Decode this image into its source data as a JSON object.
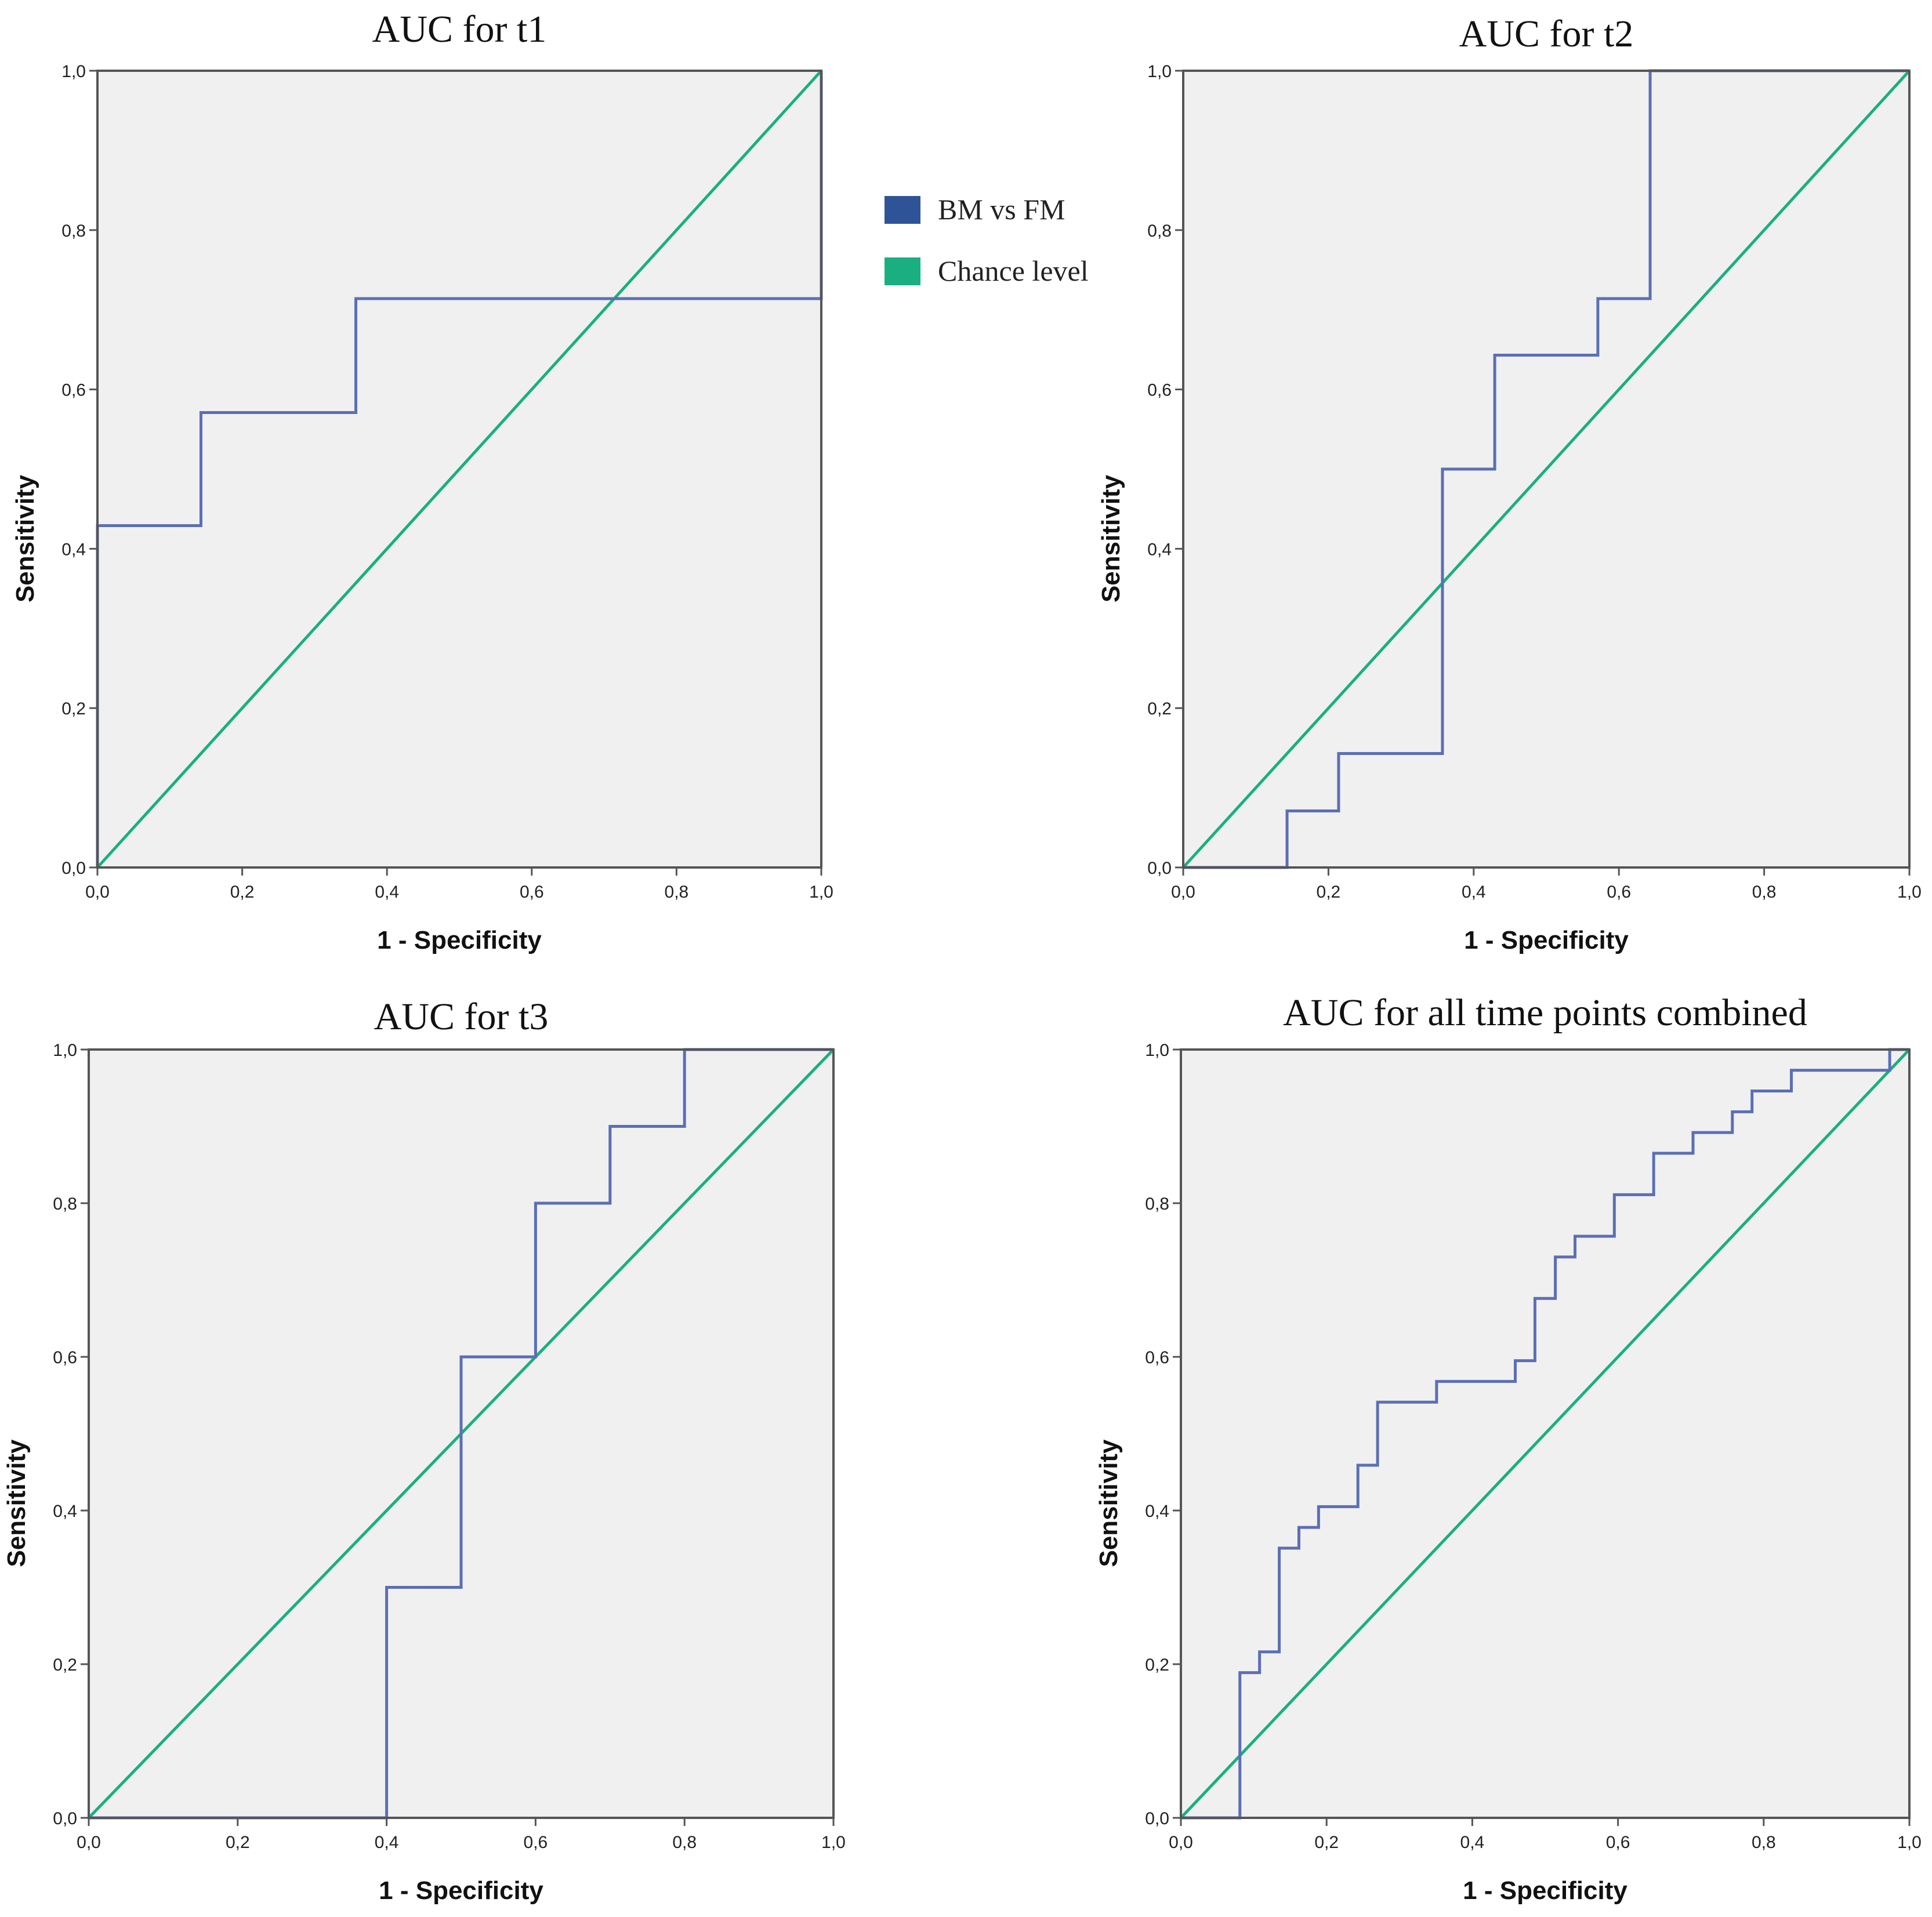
{
  "legend": {
    "items": [
      {
        "label": "BM vs FM",
        "color": "#2e5497"
      },
      {
        "label": "Chance level",
        "color": "#1aaf80"
      }
    ]
  },
  "colors": {
    "plot_background": "#f0f0f0",
    "frame": "#555555",
    "roc_line": "#5b6fb3",
    "chance_line": "#1aaf80"
  },
  "chart_data": [
    {
      "type": "line",
      "title": "AUC for t1",
      "xlabel": "1 - Specificity",
      "ylabel": "Sensitivity",
      "xlim": [
        0,
        1
      ],
      "ylim": [
        0,
        1
      ],
      "xticks": [
        "0,0",
        "0,2",
        "0,4",
        "0,6",
        "0,8",
        "1,0"
      ],
      "yticks": [
        "0,0",
        "0,2",
        "0,4",
        "0,6",
        "0,8",
        "1,0"
      ],
      "grid": false,
      "series": [
        {
          "name": "BM vs FM",
          "points": [
            [
              0,
              0
            ],
            [
              0,
              0.429
            ],
            [
              0.143,
              0.429
            ],
            [
              0.143,
              0.571
            ],
            [
              0.357,
              0.571
            ],
            [
              0.357,
              0.714
            ],
            [
              1,
              0.714
            ],
            [
              1,
              1
            ]
          ]
        },
        {
          "name": "Chance level",
          "points": [
            [
              0,
              0
            ],
            [
              1,
              1
            ]
          ]
        }
      ]
    },
    {
      "type": "line",
      "title": "AUC for t2",
      "xlabel": "1 - Specificity",
      "ylabel": "Sensitivity",
      "xlim": [
        0,
        1
      ],
      "ylim": [
        0,
        1
      ],
      "xticks": [
        "0,0",
        "0,2",
        "0,4",
        "0,6",
        "0,8",
        "1,0"
      ],
      "yticks": [
        "0,0",
        "0,2",
        "0,4",
        "0,6",
        "0,8",
        "1,0"
      ],
      "grid": false,
      "series": [
        {
          "name": "BM vs FM",
          "points": [
            [
              0,
              0
            ],
            [
              0.143,
              0
            ],
            [
              0.143,
              0.071
            ],
            [
              0.214,
              0.071
            ],
            [
              0.214,
              0.143
            ],
            [
              0.357,
              0.143
            ],
            [
              0.357,
              0.5
            ],
            [
              0.429,
              0.5
            ],
            [
              0.429,
              0.643
            ],
            [
              0.571,
              0.643
            ],
            [
              0.571,
              0.714
            ],
            [
              0.643,
              0.714
            ],
            [
              0.643,
              1
            ],
            [
              1,
              1
            ]
          ]
        },
        {
          "name": "Chance level",
          "points": [
            [
              0,
              0
            ],
            [
              1,
              1
            ]
          ]
        }
      ]
    },
    {
      "type": "line",
      "title": "AUC for t3",
      "xlabel": "1 - Specificity",
      "ylabel": "Sensitivity",
      "xlim": [
        0,
        1
      ],
      "ylim": [
        0,
        1
      ],
      "xticks": [
        "0,0",
        "0,2",
        "0,4",
        "0,6",
        "0,8",
        "1,0"
      ],
      "yticks": [
        "0,0",
        "0,2",
        "0,4",
        "0,6",
        "0,8",
        "1,0"
      ],
      "grid": false,
      "series": [
        {
          "name": "BM vs FM",
          "points": [
            [
              0,
              0
            ],
            [
              0.4,
              0
            ],
            [
              0.4,
              0.3
            ],
            [
              0.5,
              0.3
            ],
            [
              0.5,
              0.6
            ],
            [
              0.6,
              0.6
            ],
            [
              0.6,
              0.8
            ],
            [
              0.7,
              0.8
            ],
            [
              0.7,
              0.9
            ],
            [
              0.8,
              0.9
            ],
            [
              0.8,
              1
            ],
            [
              1,
              1
            ]
          ]
        },
        {
          "name": "Chance level",
          "points": [
            [
              0,
              0
            ],
            [
              1,
              1
            ]
          ]
        }
      ]
    },
    {
      "type": "line",
      "title": "AUC for all time points combined",
      "xlabel": "1 - Specificity",
      "ylabel": "Sensitivity",
      "xlim": [
        0,
        1
      ],
      "ylim": [
        0,
        1
      ],
      "xticks": [
        "0,0",
        "0,2",
        "0,4",
        "0,6",
        "0,8",
        "1,0"
      ],
      "yticks": [
        "0,0",
        "0,2",
        "0,4",
        "0,6",
        "0,8",
        "1,0"
      ],
      "grid": false,
      "series": [
        {
          "name": "BM vs FM",
          "points": [
            [
              0,
              0
            ],
            [
              0.081,
              0
            ],
            [
              0.081,
              0.189
            ],
            [
              0.108,
              0.189
            ],
            [
              0.108,
              0.216
            ],
            [
              0.135,
              0.216
            ],
            [
              0.135,
              0.351
            ],
            [
              0.162,
              0.351
            ],
            [
              0.162,
              0.378
            ],
            [
              0.189,
              0.378
            ],
            [
              0.189,
              0.405
            ],
            [
              0.243,
              0.405
            ],
            [
              0.243,
              0.459
            ],
            [
              0.27,
              0.459
            ],
            [
              0.27,
              0.541
            ],
            [
              0.351,
              0.541
            ],
            [
              0.351,
              0.568
            ],
            [
              0.459,
              0.568
            ],
            [
              0.459,
              0.595
            ],
            [
              0.486,
              0.595
            ],
            [
              0.486,
              0.676
            ],
            [
              0.514,
              0.676
            ],
            [
              0.514,
              0.73
            ],
            [
              0.541,
              0.73
            ],
            [
              0.541,
              0.757
            ],
            [
              0.595,
              0.757
            ],
            [
              0.595,
              0.811
            ],
            [
              0.649,
              0.811
            ],
            [
              0.649,
              0.865
            ],
            [
              0.703,
              0.865
            ],
            [
              0.703,
              0.892
            ],
            [
              0.757,
              0.892
            ],
            [
              0.757,
              0.919
            ],
            [
              0.784,
              0.919
            ],
            [
              0.784,
              0.946
            ],
            [
              0.838,
              0.946
            ],
            [
              0.838,
              0.973
            ],
            [
              0.973,
              0.973
            ],
            [
              0.973,
              1
            ],
            [
              1,
              1
            ]
          ]
        },
        {
          "name": "Chance level",
          "points": [
            [
              0,
              0
            ],
            [
              1,
              1
            ]
          ]
        }
      ]
    }
  ]
}
